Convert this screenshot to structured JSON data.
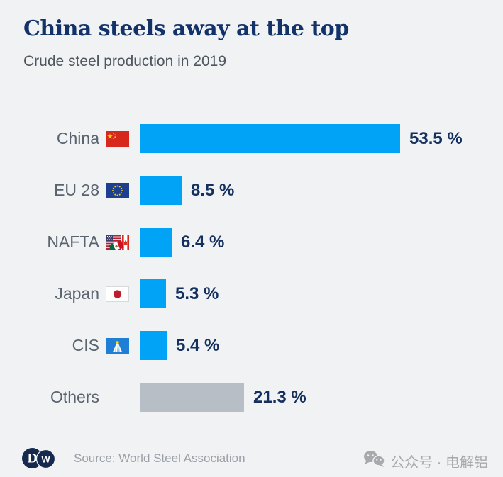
{
  "header": {
    "title": "China steels away at the top",
    "subtitle": "Crude steel production in 2019"
  },
  "chart_data": {
    "type": "bar",
    "orientation": "horizontal",
    "title": "China steels away at the top",
    "subtitle": "Crude steel production in 2019",
    "unit": "%",
    "categories": [
      "China",
      "EU 28",
      "NAFTA",
      "Japan",
      "CIS",
      "Others"
    ],
    "values": [
      53.5,
      8.5,
      6.4,
      5.3,
      5.4,
      21.3
    ],
    "value_labels": [
      "53.5 %",
      "8.5 %",
      "6.4 %",
      "5.3 %",
      "5.4 %",
      "21.3 %"
    ],
    "flags": [
      "china-flag",
      "eu-flag",
      "nafta-flag",
      "japan-flag",
      "cis-flag",
      ""
    ],
    "bar_colors": [
      "#00a3f5",
      "#00a3f5",
      "#00a3f5",
      "#00a3f5",
      "#00a3f5",
      "#b8bec6"
    ],
    "xlim": [
      0,
      55
    ],
    "grid": false,
    "legend": "none",
    "data_labels": "outside-end"
  },
  "footer": {
    "logo": "DW",
    "logo_letters": {
      "left": "D",
      "right": "W"
    },
    "source": "Source: World Steel Association"
  },
  "watermark": {
    "icon": "wechat-icon",
    "text": "公众号 · 电解铝"
  },
  "colors": {
    "background": "#f1f2f4",
    "title": "#123269",
    "subtitle": "#4e5660",
    "label": "#5a6470",
    "value": "#14305f",
    "bar_blue": "#00a3f5",
    "bar_gray": "#b8bec6",
    "source_text": "#9aa0a8",
    "watermark": "#a7aaad",
    "dw_navy": "#16294f"
  }
}
